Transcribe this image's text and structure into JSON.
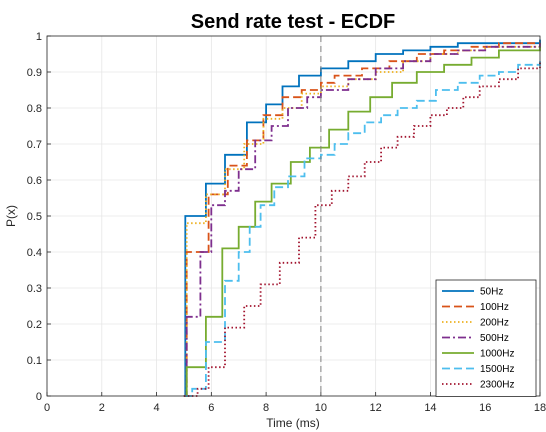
{
  "chart_data": {
    "type": "line",
    "title": "Send rate test - ECDF",
    "xlabel": "Time (ms)",
    "ylabel": "P(x)",
    "xlim": [
      0,
      18
    ],
    "ylim": [
      0,
      1
    ],
    "xticks": [
      0,
      2,
      4,
      6,
      8,
      10,
      12,
      14,
      16,
      18
    ],
    "yticks": [
      0,
      0.1,
      0.2,
      0.3,
      0.4,
      0.5,
      0.6,
      0.7,
      0.8,
      0.9,
      1
    ],
    "grid": true,
    "legend_position": "bottom-right",
    "annotations": [
      {
        "type": "vertical-line",
        "x": 10,
        "style": "dashed",
        "color": "#7f7f7f"
      }
    ],
    "series": [
      {
        "name": "50Hz",
        "color": "#0072BD",
        "style": "solid",
        "x": [
          5.0,
          5.05,
          5.8,
          6.5,
          7.3,
          8.0,
          8.6,
          9.2,
          10.0,
          11.0,
          12.0,
          13.0,
          14.0,
          15.0,
          16.0,
          18.0
        ],
        "y": [
          0.0,
          0.5,
          0.59,
          0.67,
          0.76,
          0.81,
          0.86,
          0.89,
          0.91,
          0.93,
          0.95,
          0.96,
          0.97,
          0.98,
          0.98,
          0.99
        ]
      },
      {
        "name": "100Hz",
        "color": "#D95319",
        "style": "dashed",
        "x": [
          5.0,
          5.1,
          5.9,
          6.6,
          7.3,
          7.9,
          8.6,
          9.3,
          10.0,
          10.5,
          11.5,
          12.5,
          13.5,
          14.5,
          15.5,
          16.5,
          18.0
        ],
        "y": [
          0.0,
          0.4,
          0.56,
          0.64,
          0.71,
          0.78,
          0.83,
          0.85,
          0.87,
          0.89,
          0.91,
          0.93,
          0.95,
          0.96,
          0.97,
          0.98,
          0.98
        ]
      },
      {
        "name": "200Hz",
        "color": "#EDB120",
        "style": "dotted",
        "x": [
          5.0,
          5.1,
          5.8,
          6.5,
          7.2,
          7.9,
          8.6,
          9.3,
          10.0,
          11.0,
          12.0,
          13.0,
          14.0,
          15.0,
          16.0,
          18.0
        ],
        "y": [
          0.0,
          0.48,
          0.56,
          0.63,
          0.7,
          0.77,
          0.8,
          0.84,
          0.86,
          0.88,
          0.9,
          0.93,
          0.95,
          0.96,
          0.97,
          0.98
        ]
      },
      {
        "name": "500Hz",
        "color": "#7E2F8E",
        "style": "dashdot",
        "x": [
          5.0,
          5.1,
          5.6,
          6.0,
          6.5,
          7.0,
          7.6,
          8.2,
          8.8,
          9.5,
          10.0,
          11.0,
          12.0,
          13.0,
          14.0,
          15.0,
          16.0,
          18.0
        ],
        "y": [
          0.0,
          0.22,
          0.4,
          0.53,
          0.57,
          0.63,
          0.71,
          0.75,
          0.8,
          0.83,
          0.85,
          0.88,
          0.91,
          0.93,
          0.95,
          0.96,
          0.97,
          0.98
        ]
      },
      {
        "name": "1000Hz",
        "color": "#77AC30",
        "style": "solid",
        "x": [
          5.0,
          5.1,
          5.8,
          6.4,
          7.0,
          7.6,
          8.2,
          8.9,
          9.6,
          10.3,
          11.0,
          11.8,
          12.6,
          13.5,
          14.5,
          15.5,
          16.5,
          18.0
        ],
        "y": [
          0.0,
          0.08,
          0.22,
          0.41,
          0.47,
          0.54,
          0.59,
          0.65,
          0.69,
          0.74,
          0.79,
          0.83,
          0.87,
          0.9,
          0.92,
          0.94,
          0.96,
          0.97
        ]
      },
      {
        "name": "1500Hz",
        "color": "#4DBEEE",
        "style": "dashed",
        "x": [
          5.0,
          5.3,
          5.8,
          6.5,
          7.0,
          7.4,
          7.8,
          8.3,
          8.8,
          9.4,
          10.0,
          10.5,
          11.0,
          11.6,
          12.2,
          12.8,
          13.5,
          14.2,
          15.0,
          15.8,
          16.5,
          17.2,
          18.0
        ],
        "y": [
          0.0,
          0.02,
          0.15,
          0.32,
          0.4,
          0.47,
          0.53,
          0.58,
          0.61,
          0.66,
          0.67,
          0.7,
          0.73,
          0.76,
          0.78,
          0.8,
          0.82,
          0.85,
          0.87,
          0.89,
          0.9,
          0.92,
          0.93
        ]
      },
      {
        "name": "2300Hz",
        "color": "#A2142F",
        "style": "dotted",
        "x": [
          5.0,
          5.5,
          5.9,
          6.5,
          7.2,
          7.8,
          8.5,
          9.2,
          9.8,
          10.4,
          11.0,
          11.6,
          12.2,
          12.8,
          13.4,
          14.0,
          14.6,
          15.2,
          15.8,
          16.5,
          17.2,
          18.0
        ],
        "y": [
          0.0,
          0.02,
          0.08,
          0.19,
          0.25,
          0.31,
          0.37,
          0.44,
          0.53,
          0.57,
          0.61,
          0.65,
          0.69,
          0.72,
          0.75,
          0.78,
          0.8,
          0.83,
          0.86,
          0.88,
          0.91,
          0.93
        ]
      }
    ]
  }
}
